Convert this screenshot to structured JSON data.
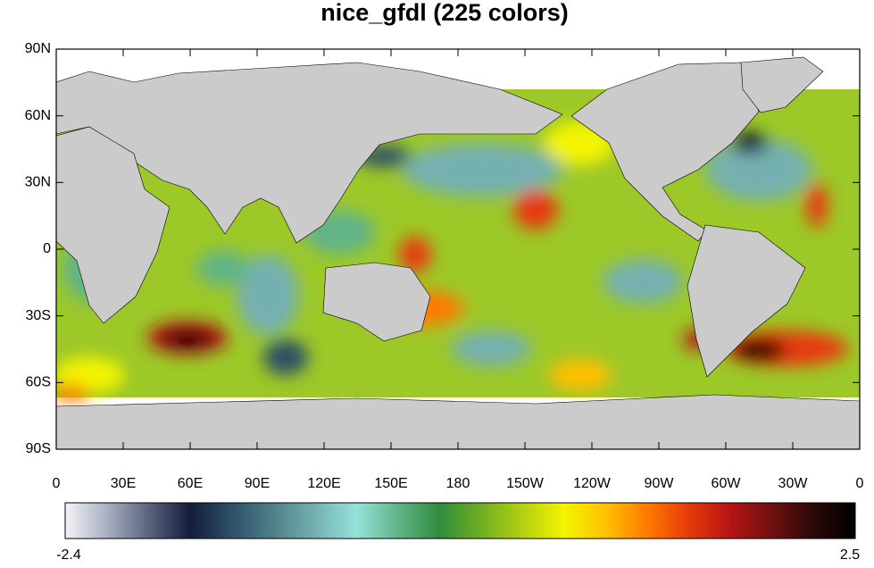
{
  "title": "nice_gfdl (225 colors)",
  "map": {
    "lat_ticks": [
      "90N",
      "60N",
      "30N",
      "0",
      "30S",
      "60S",
      "90S"
    ],
    "lon_ticks": [
      "0",
      "30E",
      "60E",
      "90E",
      "120E",
      "150E",
      "180",
      "150W",
      "120W",
      "90W",
      "60W",
      "30W",
      "0"
    ]
  },
  "colorbar": {
    "min": -2.4,
    "max": 2.5,
    "colors": [
      "#f4f4f8",
      "#a9b0c0",
      "#5a6580",
      "#141c38",
      "#2d5068",
      "#4f8088",
      "#74b0b0",
      "#95e2da",
      "#62b488",
      "#2f8c3c",
      "#6fae22",
      "#b4d010",
      "#f4f400",
      "#ffc000",
      "#ff7a00",
      "#e63a0a",
      "#b41414",
      "#701010",
      "#2a0808",
      "#000000"
    ]
  }
}
